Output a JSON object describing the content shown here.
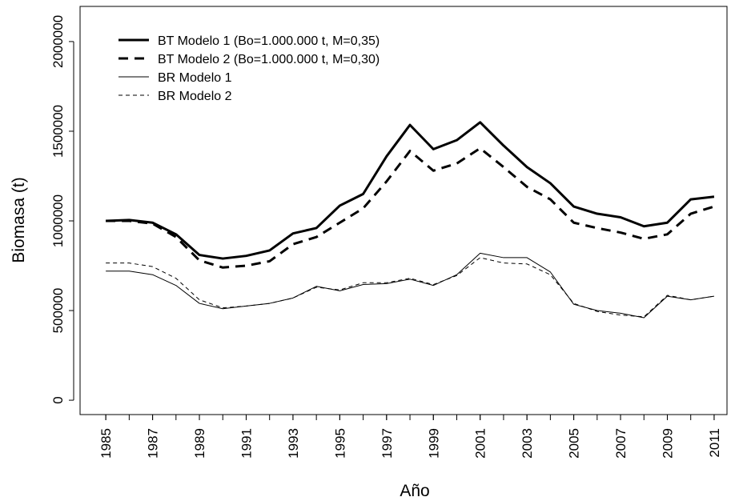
{
  "chart_data": {
    "type": "line",
    "x_label": "Año",
    "y_label": "Biomasa (t)",
    "x": [
      1985,
      1986,
      1987,
      1988,
      1989,
      1990,
      1991,
      1992,
      1993,
      1994,
      1995,
      1996,
      1997,
      1998,
      1999,
      2000,
      2001,
      2002,
      2003,
      2004,
      2005,
      2006,
      2007,
      2008,
      2009,
      2010,
      2011
    ],
    "series": [
      {
        "name": "BT Modelo 1 (Bo=1.000.000 t, M=0,35)",
        "color": "#000000",
        "line_width": 3,
        "dash": "solid",
        "values": [
          1000000,
          1005000,
          990000,
          925000,
          810000,
          790000,
          805000,
          835000,
          930000,
          960000,
          1085000,
          1150000,
          1360000,
          1535000,
          1400000,
          1450000,
          1550000,
          1420000,
          1300000,
          1210000,
          1080000,
          1040000,
          1020000,
          970000,
          990000,
          1120000,
          1135000
        ]
      },
      {
        "name": "BT Modelo 2 (Bo=1.000.000 t, M=0,30)",
        "color": "#000000",
        "line_width": 3,
        "dash": "dashed",
        "values": [
          1000000,
          1000000,
          985000,
          910000,
          780000,
          740000,
          750000,
          775000,
          870000,
          910000,
          990000,
          1070000,
          1220000,
          1390000,
          1280000,
          1320000,
          1405000,
          1300000,
          1190000,
          1120000,
          990000,
          960000,
          935000,
          900000,
          925000,
          1040000,
          1080000
        ]
      },
      {
        "name": "BR Modelo 1",
        "color": "#000000",
        "line_width": 1,
        "dash": "solid",
        "values": [
          720000,
          720000,
          700000,
          640000,
          540000,
          510000,
          525000,
          540000,
          570000,
          635000,
          610000,
          645000,
          650000,
          675000,
          640000,
          700000,
          820000,
          795000,
          795000,
          715000,
          535000,
          500000,
          485000,
          460000,
          580000,
          560000,
          580000
        ]
      },
      {
        "name": "BR Modelo 2",
        "color": "#000000",
        "line_width": 1,
        "dash": "dashed",
        "values": [
          765000,
          765000,
          745000,
          680000,
          560000,
          515000,
          525000,
          540000,
          570000,
          630000,
          615000,
          655000,
          655000,
          680000,
          645000,
          695000,
          795000,
          765000,
          760000,
          700000,
          540000,
          495000,
          475000,
          465000,
          585000,
          560000,
          580000
        ]
      }
    ],
    "xlim": [
      1983.9,
      2011.55
    ],
    "ylim": [
      -80000,
      2196000
    ],
    "xticks": [
      1985,
      1987,
      1989,
      1991,
      1993,
      1995,
      1997,
      1999,
      2001,
      2003,
      2005,
      2007,
      2009,
      2011
    ],
    "yticks": [
      0,
      500000,
      1000000,
      1500000,
      2000000
    ],
    "legend": "top-left"
  }
}
